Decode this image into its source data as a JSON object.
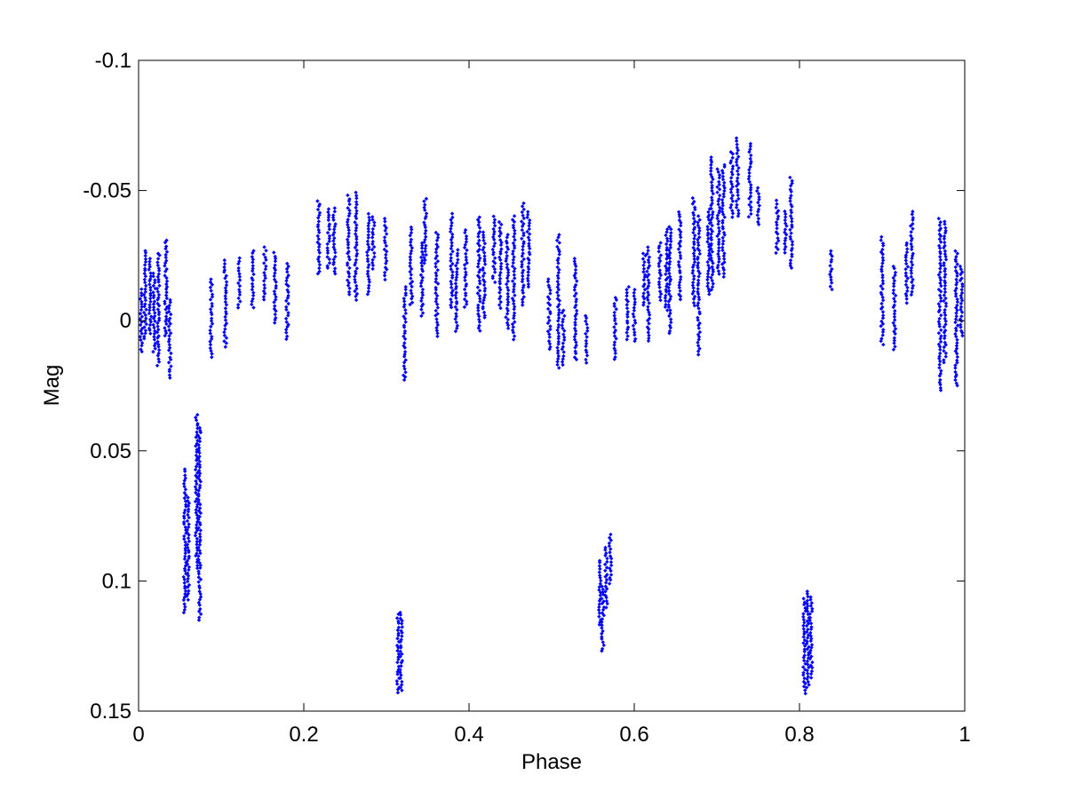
{
  "chart_data": {
    "type": "scatter",
    "title": "",
    "xlabel": "Phase",
    "ylabel": "Mag",
    "xlim": [
      0,
      1
    ],
    "ylim": [
      -0.1,
      0.15
    ],
    "y_inverted": true,
    "grid": false,
    "legend": "none",
    "marker_color": "#0000ff",
    "x_ticks": [
      {
        "value": 0,
        "label": "0"
      },
      {
        "value": 0.2,
        "label": "0.2"
      },
      {
        "value": 0.4,
        "label": "0.4"
      },
      {
        "value": 0.6,
        "label": "0.6"
      },
      {
        "value": 0.8,
        "label": "0.8"
      },
      {
        "value": 1,
        "label": "1"
      }
    ],
    "y_ticks": [
      {
        "value": -0.1,
        "label": "-0.1"
      },
      {
        "value": -0.05,
        "label": "-0.05"
      },
      {
        "value": 0,
        "label": "0"
      },
      {
        "value": 0.05,
        "label": "0.05"
      },
      {
        "value": 0.1,
        "label": "0.1"
      },
      {
        "value": 0.15,
        "label": "0.15"
      }
    ],
    "groups": [
      {
        "x": 0.003,
        "ymin": -0.012,
        "ymax": 0.012
      },
      {
        "x": 0.008,
        "ymin": -0.027,
        "ymax": 0.007
      },
      {
        "x": 0.014,
        "ymin": -0.024,
        "ymax": 0.005
      },
      {
        "x": 0.019,
        "ymin": -0.018,
        "ymax": 0.012
      },
      {
        "x": 0.024,
        "ymin": -0.026,
        "ymax": 0.017
      },
      {
        "x": 0.033,
        "ymin": -0.031,
        "ymax": 0.006
      },
      {
        "x": 0.038,
        "ymin": -0.008,
        "ymax": 0.022
      },
      {
        "x": 0.056,
        "ymin": 0.057,
        "ymax": 0.112
      },
      {
        "x": 0.06,
        "ymin": 0.068,
        "ymax": 0.107
      },
      {
        "x": 0.07,
        "ymin": 0.036,
        "ymax": 0.095
      },
      {
        "x": 0.074,
        "ymin": 0.041,
        "ymax": 0.115
      },
      {
        "x": 0.088,
        "ymin": -0.016,
        "ymax": 0.014
      },
      {
        "x": 0.105,
        "ymin": -0.023,
        "ymax": 0.01
      },
      {
        "x": 0.122,
        "ymin": -0.024,
        "ymax": -0.005
      },
      {
        "x": 0.138,
        "ymin": -0.027,
        "ymax": -0.005
      },
      {
        "x": 0.153,
        "ymin": -0.028,
        "ymax": -0.008
      },
      {
        "x": 0.165,
        "ymin": -0.026,
        "ymax": 0.001
      },
      {
        "x": 0.18,
        "ymin": -0.022,
        "ymax": 0.007
      },
      {
        "x": 0.218,
        "ymin": -0.046,
        "ymax": -0.018
      },
      {
        "x": 0.23,
        "ymin": -0.043,
        "ymax": -0.02
      },
      {
        "x": 0.237,
        "ymin": -0.043,
        "ymax": -0.018
      },
      {
        "x": 0.254,
        "ymin": -0.048,
        "ymax": -0.01
      },
      {
        "x": 0.263,
        "ymin": -0.049,
        "ymax": -0.008
      },
      {
        "x": 0.278,
        "ymin": -0.041,
        "ymax": -0.01
      },
      {
        "x": 0.284,
        "ymin": -0.04,
        "ymax": -0.02
      },
      {
        "x": 0.299,
        "ymin": -0.039,
        "ymax": -0.016
      },
      {
        "x": 0.314,
        "ymin": 0.113,
        "ymax": 0.143
      },
      {
        "x": 0.318,
        "ymin": 0.112,
        "ymax": 0.142
      },
      {
        "x": 0.322,
        "ymin": -0.013,
        "ymax": 0.023
      },
      {
        "x": 0.33,
        "ymin": -0.036,
        "ymax": -0.006
      },
      {
        "x": 0.343,
        "ymin": -0.03,
        "ymax": -0.002
      },
      {
        "x": 0.347,
        "ymin": -0.047,
        "ymax": -0.022
      },
      {
        "x": 0.361,
        "ymin": -0.034,
        "ymax": 0.006
      },
      {
        "x": 0.379,
        "ymin": -0.041,
        "ymax": -0.005
      },
      {
        "x": 0.385,
        "ymin": -0.027,
        "ymax": 0.004
      },
      {
        "x": 0.396,
        "ymin": -0.035,
        "ymax": -0.005
      },
      {
        "x": 0.412,
        "ymin": -0.04,
        "ymax": 0.004
      },
      {
        "x": 0.418,
        "ymin": -0.034,
        "ymax": -0.001
      },
      {
        "x": 0.43,
        "ymin": -0.04,
        "ymax": -0.015
      },
      {
        "x": 0.438,
        "ymin": -0.038,
        "ymax": -0.005
      },
      {
        "x": 0.446,
        "ymin": -0.033,
        "ymax": 0.003
      },
      {
        "x": 0.454,
        "ymin": -0.04,
        "ymax": 0.007
      },
      {
        "x": 0.465,
        "ymin": -0.045,
        "ymax": -0.006
      },
      {
        "x": 0.472,
        "ymin": -0.042,
        "ymax": -0.013
      },
      {
        "x": 0.497,
        "ymin": -0.016,
        "ymax": 0.011
      },
      {
        "x": 0.508,
        "ymin": -0.033,
        "ymax": 0.018
      },
      {
        "x": 0.514,
        "ymin": -0.004,
        "ymax": 0.017
      },
      {
        "x": 0.529,
        "ymin": -0.024,
        "ymax": 0.015
      },
      {
        "x": 0.542,
        "ymin": -0.002,
        "ymax": 0.016
      },
      {
        "x": 0.558,
        "ymin": 0.092,
        "ymax": 0.117
      },
      {
        "x": 0.562,
        "ymin": 0.102,
        "ymax": 0.127
      },
      {
        "x": 0.566,
        "ymin": 0.087,
        "ymax": 0.11
      },
      {
        "x": 0.571,
        "ymin": 0.082,
        "ymax": 0.101
      },
      {
        "x": 0.577,
        "ymin": -0.009,
        "ymax": 0.015
      },
      {
        "x": 0.592,
        "ymin": -0.013,
        "ymax": 0.007
      },
      {
        "x": 0.6,
        "ymin": -0.012,
        "ymax": 0.008
      },
      {
        "x": 0.612,
        "ymin": -0.026,
        "ymax": -0.006
      },
      {
        "x": 0.617,
        "ymin": -0.028,
        "ymax": 0.008
      },
      {
        "x": 0.631,
        "ymin": -0.03,
        "ymax": -0.008
      },
      {
        "x": 0.639,
        "ymin": -0.035,
        "ymax": -0.004
      },
      {
        "x": 0.643,
        "ymin": -0.036,
        "ymax": 0.005
      },
      {
        "x": 0.655,
        "ymin": -0.042,
        "ymax": -0.008
      },
      {
        "x": 0.672,
        "ymin": -0.047,
        "ymax": -0.006
      },
      {
        "x": 0.678,
        "ymin": -0.04,
        "ymax": 0.013
      },
      {
        "x": 0.69,
        "ymin": -0.043,
        "ymax": -0.01
      },
      {
        "x": 0.694,
        "ymin": -0.063,
        "ymax": -0.012
      },
      {
        "x": 0.702,
        "ymin": -0.058,
        "ymax": -0.018
      },
      {
        "x": 0.708,
        "ymin": -0.06,
        "ymax": -0.017
      },
      {
        "x": 0.718,
        "ymin": -0.065,
        "ymax": -0.04
      },
      {
        "x": 0.725,
        "ymin": -0.07,
        "ymax": -0.04
      },
      {
        "x": 0.74,
        "ymin": -0.068,
        "ymax": -0.04
      },
      {
        "x": 0.75,
        "ymin": -0.051,
        "ymax": -0.037
      },
      {
        "x": 0.773,
        "ymin": -0.046,
        "ymax": -0.026
      },
      {
        "x": 0.783,
        "ymin": -0.042,
        "ymax": -0.026
      },
      {
        "x": 0.79,
        "ymin": -0.055,
        "ymax": -0.02
      },
      {
        "x": 0.806,
        "ymin": 0.107,
        "ymax": 0.143
      },
      {
        "x": 0.81,
        "ymin": 0.104,
        "ymax": 0.141
      },
      {
        "x": 0.814,
        "ymin": 0.106,
        "ymax": 0.137
      },
      {
        "x": 0.838,
        "ymin": -0.027,
        "ymax": -0.012
      },
      {
        "x": 0.9,
        "ymin": -0.032,
        "ymax": 0.009
      },
      {
        "x": 0.915,
        "ymin": -0.021,
        "ymax": 0.011
      },
      {
        "x": 0.93,
        "ymin": -0.03,
        "ymax": -0.007
      },
      {
        "x": 0.936,
        "ymin": -0.042,
        "ymax": -0.01
      },
      {
        "x": 0.97,
        "ymin": -0.039,
        "ymax": 0.027
      },
      {
        "x": 0.976,
        "ymin": -0.038,
        "ymax": 0.016
      },
      {
        "x": 0.99,
        "ymin": -0.027,
        "ymax": 0.025
      },
      {
        "x": 0.996,
        "ymin": -0.021,
        "ymax": 0.006
      }
    ]
  }
}
